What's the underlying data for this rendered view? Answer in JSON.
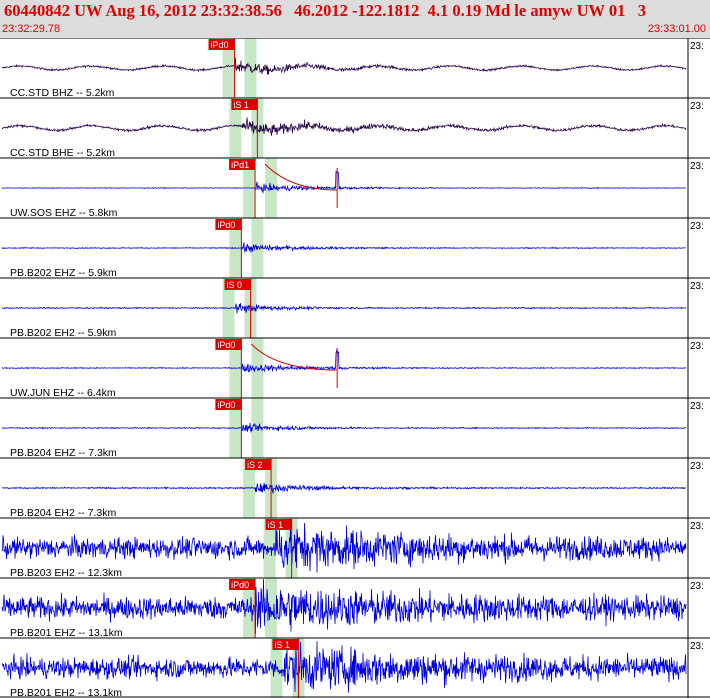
{
  "header": {
    "title": "60440842 UW Aug 16, 2012 23:32:38.56   46.2012 -122.1812  4.1 0.19 Md le amyw UW 01   3",
    "start_time": "23:32:29.78",
    "end_time": "23:33:01.00"
  },
  "colors": {
    "header_bg": "#dcdcdc",
    "header_text": "#e00000",
    "trace_dark": "#2a0a4a",
    "trace_blue": "#0000dd",
    "pick_box": "#dd0000",
    "window_band": "#b8e0b8"
  },
  "traces": [
    {
      "label": "CC.STD BHZ -- 5.2km",
      "pick": "iPd0",
      "color": "dark",
      "amp": 0.3,
      "noise": 0.35,
      "arrival": 0.34,
      "peak": 2.6,
      "decay": 0.09,
      "coda": false,
      "spike": null
    },
    {
      "label": "CC.STD BHE -- 5.2km",
      "pick": "iS 1",
      "color": "dark",
      "amp": 0.35,
      "noise": 0.4,
      "arrival": 0.35,
      "peak": 2.4,
      "decay": 0.12,
      "coda": false,
      "spike": null
    },
    {
      "label": "UW.SOS EHZ -- 5.8km",
      "pick": "iPd1",
      "color": "blue",
      "amp": 0.18,
      "noise": 0.2,
      "arrival": 0.37,
      "peak": 2.8,
      "decay": 0.08,
      "coda": true,
      "spike": 0.49
    },
    {
      "label": "PB.B202 EHZ -- 5.9km",
      "pick": "iPd0",
      "color": "blue",
      "amp": 0.2,
      "noise": 0.25,
      "arrival": 0.35,
      "peak": 2.6,
      "decay": 0.07,
      "coda": false,
      "spike": null
    },
    {
      "label": "PB.B202 EH2 -- 5.9km",
      "pick": "iS 0",
      "color": "blue",
      "amp": 0.22,
      "noise": 0.3,
      "arrival": 0.34,
      "peak": 2.4,
      "decay": 0.06,
      "coda": false,
      "spike": null
    },
    {
      "label": "UW.JUN EHZ -- 6.4km",
      "pick": "iPd0",
      "color": "blue",
      "amp": 0.2,
      "noise": 0.25,
      "arrival": 0.35,
      "peak": 2.6,
      "decay": 0.09,
      "coda": true,
      "spike": 0.49
    },
    {
      "label": "PB.B204 EHZ -- 7.3km",
      "pick": "iPd0",
      "color": "blue",
      "amp": 0.22,
      "noise": 0.25,
      "arrival": 0.35,
      "peak": 2.2,
      "decay": 0.07,
      "coda": false,
      "spike": null
    },
    {
      "label": "PB.B204 EH2 -- 7.3km",
      "pick": "iS 2",
      "color": "blue",
      "amp": 0.25,
      "noise": 0.3,
      "arrival": 0.37,
      "peak": 2.3,
      "decay": 0.08,
      "coda": false,
      "spike": null
    },
    {
      "label": "PB.B203 EH2 -- 12.3km",
      "pick": "iS 1",
      "color": "blue",
      "amp": 1.2,
      "noise": 1.0,
      "arrival": 0.4,
      "peak": 1.5,
      "decay": 0.2,
      "coda": false,
      "spike": null
    },
    {
      "label": "PB.B201 EHZ -- 13.1km",
      "pick": "iPd0",
      "color": "blue",
      "amp": 1.3,
      "noise": 1.0,
      "arrival": 0.37,
      "peak": 1.4,
      "decay": 0.2,
      "coda": false,
      "spike": null
    },
    {
      "label": "PB.B201 EH2 -- 13.1km",
      "pick": "iS 1",
      "color": "blue",
      "amp": 1.2,
      "noise": 1.0,
      "arrival": 0.41,
      "peak": 1.5,
      "decay": 0.2,
      "coda": false,
      "spike": null
    }
  ],
  "row_time_label": "23:"
}
